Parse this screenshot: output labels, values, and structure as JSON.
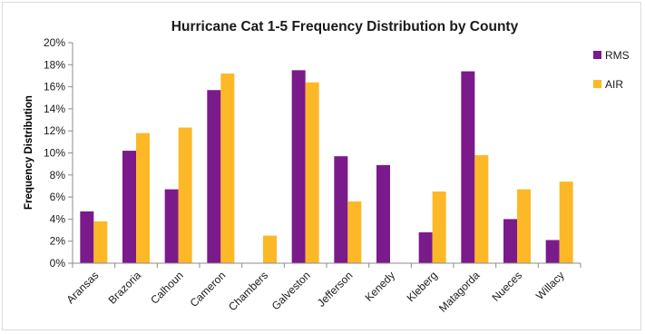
{
  "chart_data": {
    "type": "bar",
    "title": "Hurricane Cat 1-5 Frequency Distribution by County",
    "xlabel": "",
    "ylabel": "Frequency Distribution",
    "ylim": [
      0,
      0.2
    ],
    "y_ticks": [
      "0%",
      "2%",
      "4%",
      "6%",
      "8%",
      "10%",
      "12%",
      "14%",
      "16%",
      "18%",
      "20%"
    ],
    "categories": [
      "Aransas",
      "Brazoria",
      "Calhoun",
      "Cameron",
      "Chambers",
      "Galveston",
      "Jefferson",
      "Kenedy",
      "Kleberg",
      "Matagorda",
      "Nueces",
      "Willacy"
    ],
    "series": [
      {
        "name": "RMS",
        "color": "#7b1a8b",
        "values": [
          0.047,
          0.102,
          0.067,
          0.157,
          0.0,
          0.175,
          0.097,
          0.089,
          0.028,
          0.174,
          0.04,
          0.021
        ]
      },
      {
        "name": "AIR",
        "color": "#fdb827",
        "values": [
          0.038,
          0.118,
          0.123,
          0.172,
          0.025,
          0.164,
          0.056,
          0.0,
          0.065,
          0.098,
          0.067,
          0.074
        ]
      }
    ],
    "grid": false,
    "legend": "right"
  }
}
